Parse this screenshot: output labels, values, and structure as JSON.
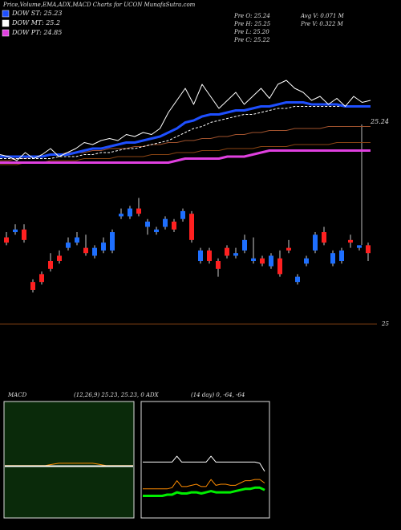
{
  "chart_data": [
    {
      "type": "line",
      "title": "Price,Volume,EMA,ADX,MACD Charts for UCON  MunafaSutra.com",
      "info": [
        "Pre  O: 25.24",
        "Pre  H: 25.25",
        "Pre  L: 25.20",
        "Pre  C: 25.22",
        "Avg V: 0.071 M",
        "Pre  V: 0.322  M"
      ],
      "ylim": [
        24.8,
        25.4
      ],
      "series": [
        {
          "color": "#8b4513",
          "width": 1,
          "values": [
            24.82,
            24.82,
            24.82,
            24.83,
            24.83,
            24.83,
            24.84,
            24.84,
            24.84,
            24.84,
            24.85,
            24.85,
            24.85,
            24.85,
            24.86,
            24.86,
            24.86,
            24.86,
            24.87,
            24.87,
            24.87,
            24.88,
            24.88,
            24.88,
            24.89,
            24.89,
            24.89,
            24.9,
            24.9,
            24.9,
            24.9,
            24.91,
            24.91,
            24.91,
            24.91,
            24.92,
            24.92,
            24.92,
            24.92,
            24.92,
            24.93,
            24.93,
            24.93,
            24.93,
            24.93
          ]
        },
        {
          "color": "#a0522d",
          "width": 1,
          "values": [
            24.84,
            24.84,
            24.85,
            24.85,
            24.86,
            24.86,
            24.87,
            24.87,
            24.88,
            24.88,
            24.88,
            24.89,
            24.89,
            24.9,
            24.9,
            24.9,
            24.91,
            24.91,
            24.92,
            24.92,
            24.93,
            24.93,
            24.94,
            24.94,
            24.95,
            24.95,
            24.96,
            24.96,
            24.97,
            24.97,
            24.98,
            24.98,
            24.99,
            24.99,
            24.99,
            25.0,
            25.0,
            25.0,
            25.0,
            25.01,
            25.01,
            25.01,
            25.01,
            25.01,
            25.01
          ]
        },
        {
          "name": "DOW PT: 24.85",
          "color": "#e040e0",
          "width": 3,
          "values": [
            24.83,
            24.83,
            24.83,
            24.83,
            24.83,
            24.83,
            24.83,
            24.83,
            24.83,
            24.83,
            24.83,
            24.83,
            24.83,
            24.83,
            24.83,
            24.83,
            24.83,
            24.83,
            24.83,
            24.83,
            24.83,
            24.84,
            24.85,
            24.85,
            24.85,
            24.85,
            24.85,
            24.86,
            24.86,
            24.86,
            24.87,
            24.88,
            24.89,
            24.89,
            24.89,
            24.89,
            24.89,
            24.89,
            24.89,
            24.89,
            24.89,
            24.89,
            24.89,
            24.89,
            24.89
          ]
        },
        {
          "name": "DOW MT: 25.2",
          "color": "#ffffff",
          "width": 1,
          "dash": true,
          "values": [
            24.85,
            24.85,
            24.85,
            24.85,
            24.85,
            24.85,
            24.85,
            24.86,
            24.86,
            24.86,
            24.87,
            24.87,
            24.88,
            24.88,
            24.89,
            24.9,
            24.9,
            24.91,
            24.92,
            24.93,
            24.94,
            24.96,
            24.98,
            25.0,
            25.01,
            25.03,
            25.04,
            25.05,
            25.06,
            25.07,
            25.07,
            25.08,
            25.09,
            25.1,
            25.1,
            25.11,
            25.11,
            25.11,
            25.11,
            25.11,
            25.11,
            25.11,
            25.11,
            25.11,
            25.11
          ]
        },
        {
          "name": "DOW ST: 25.23",
          "color": "#1e4fff",
          "width": 3,
          "values": [
            24.86,
            24.86,
            24.86,
            24.86,
            24.86,
            24.86,
            24.87,
            24.87,
            24.87,
            24.88,
            24.89,
            24.9,
            24.9,
            24.91,
            24.92,
            24.93,
            24.93,
            24.94,
            24.95,
            24.96,
            24.98,
            25.0,
            25.03,
            25.04,
            25.06,
            25.07,
            25.07,
            25.08,
            25.09,
            25.09,
            25.1,
            25.11,
            25.11,
            25.12,
            25.13,
            25.13,
            25.13,
            25.12,
            25.12,
            25.12,
            25.12,
            25.11,
            25.11,
            25.11,
            25.11
          ]
        },
        {
          "color": "#ffffff",
          "width": 1,
          "values": [
            24.87,
            24.86,
            24.84,
            24.88,
            24.85,
            24.87,
            24.9,
            24.86,
            24.88,
            24.9,
            24.93,
            24.92,
            24.94,
            24.95,
            24.94,
            24.97,
            24.96,
            24.98,
            24.97,
            25.0,
            25.08,
            25.14,
            25.2,
            25.12,
            25.22,
            25.16,
            25.1,
            25.14,
            25.18,
            25.12,
            25.16,
            25.2,
            25.15,
            25.22,
            25.24,
            25.2,
            25.18,
            25.14,
            25.16,
            25.12,
            25.15,
            25.11,
            25.16,
            25.13,
            25.14
          ]
        }
      ]
    },
    {
      "type": "candlestick",
      "annotation": "25.24",
      "ylim": [
        24.98,
        25.5
      ],
      "yticks": [
        25
      ],
      "grid": true,
      "grid_color": "#8b4513",
      "up_color": "#1e6fff",
      "down_color": "#ff2020",
      "open": [
        25.33,
        25.35,
        25.36,
        25.16,
        25.19,
        25.24,
        25.26,
        25.29,
        25.31,
        25.29,
        25.26,
        25.28,
        25.28,
        25.41,
        25.41,
        25.44,
        25.37,
        25.35,
        25.37,
        25.39,
        25.4,
        25.42,
        25.24,
        25.28,
        25.24,
        25.29,
        25.26,
        25.28,
        25.24,
        25.25,
        25.22,
        25.25,
        25.29,
        25.16,
        25.23,
        25.28,
        25.35,
        25.23,
        25.24,
        25.32,
        25.29,
        25.3
      ],
      "high": [
        25.35,
        25.38,
        25.38,
        25.17,
        25.2,
        25.27,
        25.28,
        25.33,
        25.35,
        25.34,
        25.3,
        25.33,
        25.36,
        25.44,
        25.45,
        25.48,
        25.4,
        25.37,
        25.41,
        25.4,
        25.44,
        25.43,
        25.29,
        25.29,
        25.25,
        25.3,
        25.29,
        25.34,
        25.33,
        25.26,
        25.27,
        25.28,
        25.32,
        25.19,
        25.26,
        25.35,
        25.37,
        25.28,
        25.29,
        25.34,
        25.3,
        25.31
      ],
      "low": [
        25.3,
        25.34,
        25.31,
        25.12,
        25.15,
        25.2,
        25.23,
        25.28,
        25.3,
        25.26,
        25.25,
        25.27,
        25.27,
        25.4,
        25.4,
        25.41,
        25.34,
        25.34,
        25.36,
        25.35,
        25.39,
        25.31,
        25.23,
        25.23,
        25.18,
        25.25,
        25.25,
        25.27,
        25.23,
        25.22,
        25.21,
        25.18,
        25.27,
        25.15,
        25.22,
        25.27,
        25.3,
        25.22,
        25.23,
        25.29,
        25.28,
        25.24
      ],
      "close": [
        25.31,
        25.36,
        25.32,
        25.13,
        25.16,
        25.21,
        25.24,
        25.31,
        25.33,
        25.27,
        25.29,
        25.31,
        25.35,
        25.42,
        25.44,
        25.42,
        25.39,
        25.36,
        25.4,
        25.36,
        25.43,
        25.32,
        25.28,
        25.24,
        25.21,
        25.26,
        25.27,
        25.32,
        25.25,
        25.23,
        25.26,
        25.19,
        25.28,
        25.18,
        25.25,
        25.34,
        25.31,
        25.27,
        25.28,
        25.31,
        25.3,
        25.27
      ]
    },
    {
      "type": "line",
      "title": "MACD",
      "subtitle": "(12,26,9) 25.23, 25.23, 0",
      "ylim": [
        -0.1,
        0.1
      ],
      "series": [
        {
          "color": "#ff8c00",
          "width": 1,
          "values": [
            -0.01,
            -0.01,
            -0.01,
            -0.01,
            -0.01,
            -0.01,
            -0.01,
            -0.008,
            -0.006,
            -0.006,
            -0.006,
            -0.006,
            -0.006,
            -0.006,
            -0.008,
            -0.01,
            -0.01,
            -0.01,
            -0.01,
            -0.01
          ]
        },
        {
          "color": "#ffffff",
          "width": 2,
          "values": [
            -0.011,
            -0.011,
            -0.011,
            -0.011,
            -0.011,
            -0.011,
            -0.011,
            -0.011,
            -0.011,
            -0.011,
            -0.011,
            -0.011,
            -0.011,
            -0.011,
            -0.011,
            -0.011,
            -0.011,
            -0.011,
            -0.011,
            -0.011
          ]
        }
      ]
    },
    {
      "type": "line",
      "title": "ADX",
      "subtitle": "(14 day) 0, -64, -64",
      "ylim": [
        0,
        100
      ],
      "series": [
        {
          "color": "#ffffff",
          "width": 1,
          "values": [
            48,
            48,
            48,
            48,
            48,
            48,
            48,
            53,
            48,
            48,
            48,
            48,
            48,
            48,
            53,
            48,
            48,
            48,
            48,
            48,
            48,
            48,
            48,
            48,
            47,
            40
          ]
        },
        {
          "color": "#ff8c00",
          "width": 1,
          "values": [
            25,
            25,
            25,
            25,
            25,
            25,
            26,
            32,
            27,
            27,
            28,
            29,
            27,
            27,
            33,
            28,
            29,
            29,
            28,
            28,
            30,
            32,
            32,
            33,
            33,
            30
          ]
        },
        {
          "color": "#00ee00",
          "width": 3,
          "values": [
            19,
            19,
            19,
            19,
            19,
            20,
            20,
            22,
            21,
            21,
            22,
            22,
            21,
            22,
            23,
            22,
            22,
            22,
            22,
            23,
            24,
            25,
            25,
            26,
            26,
            24
          ]
        }
      ]
    }
  ]
}
